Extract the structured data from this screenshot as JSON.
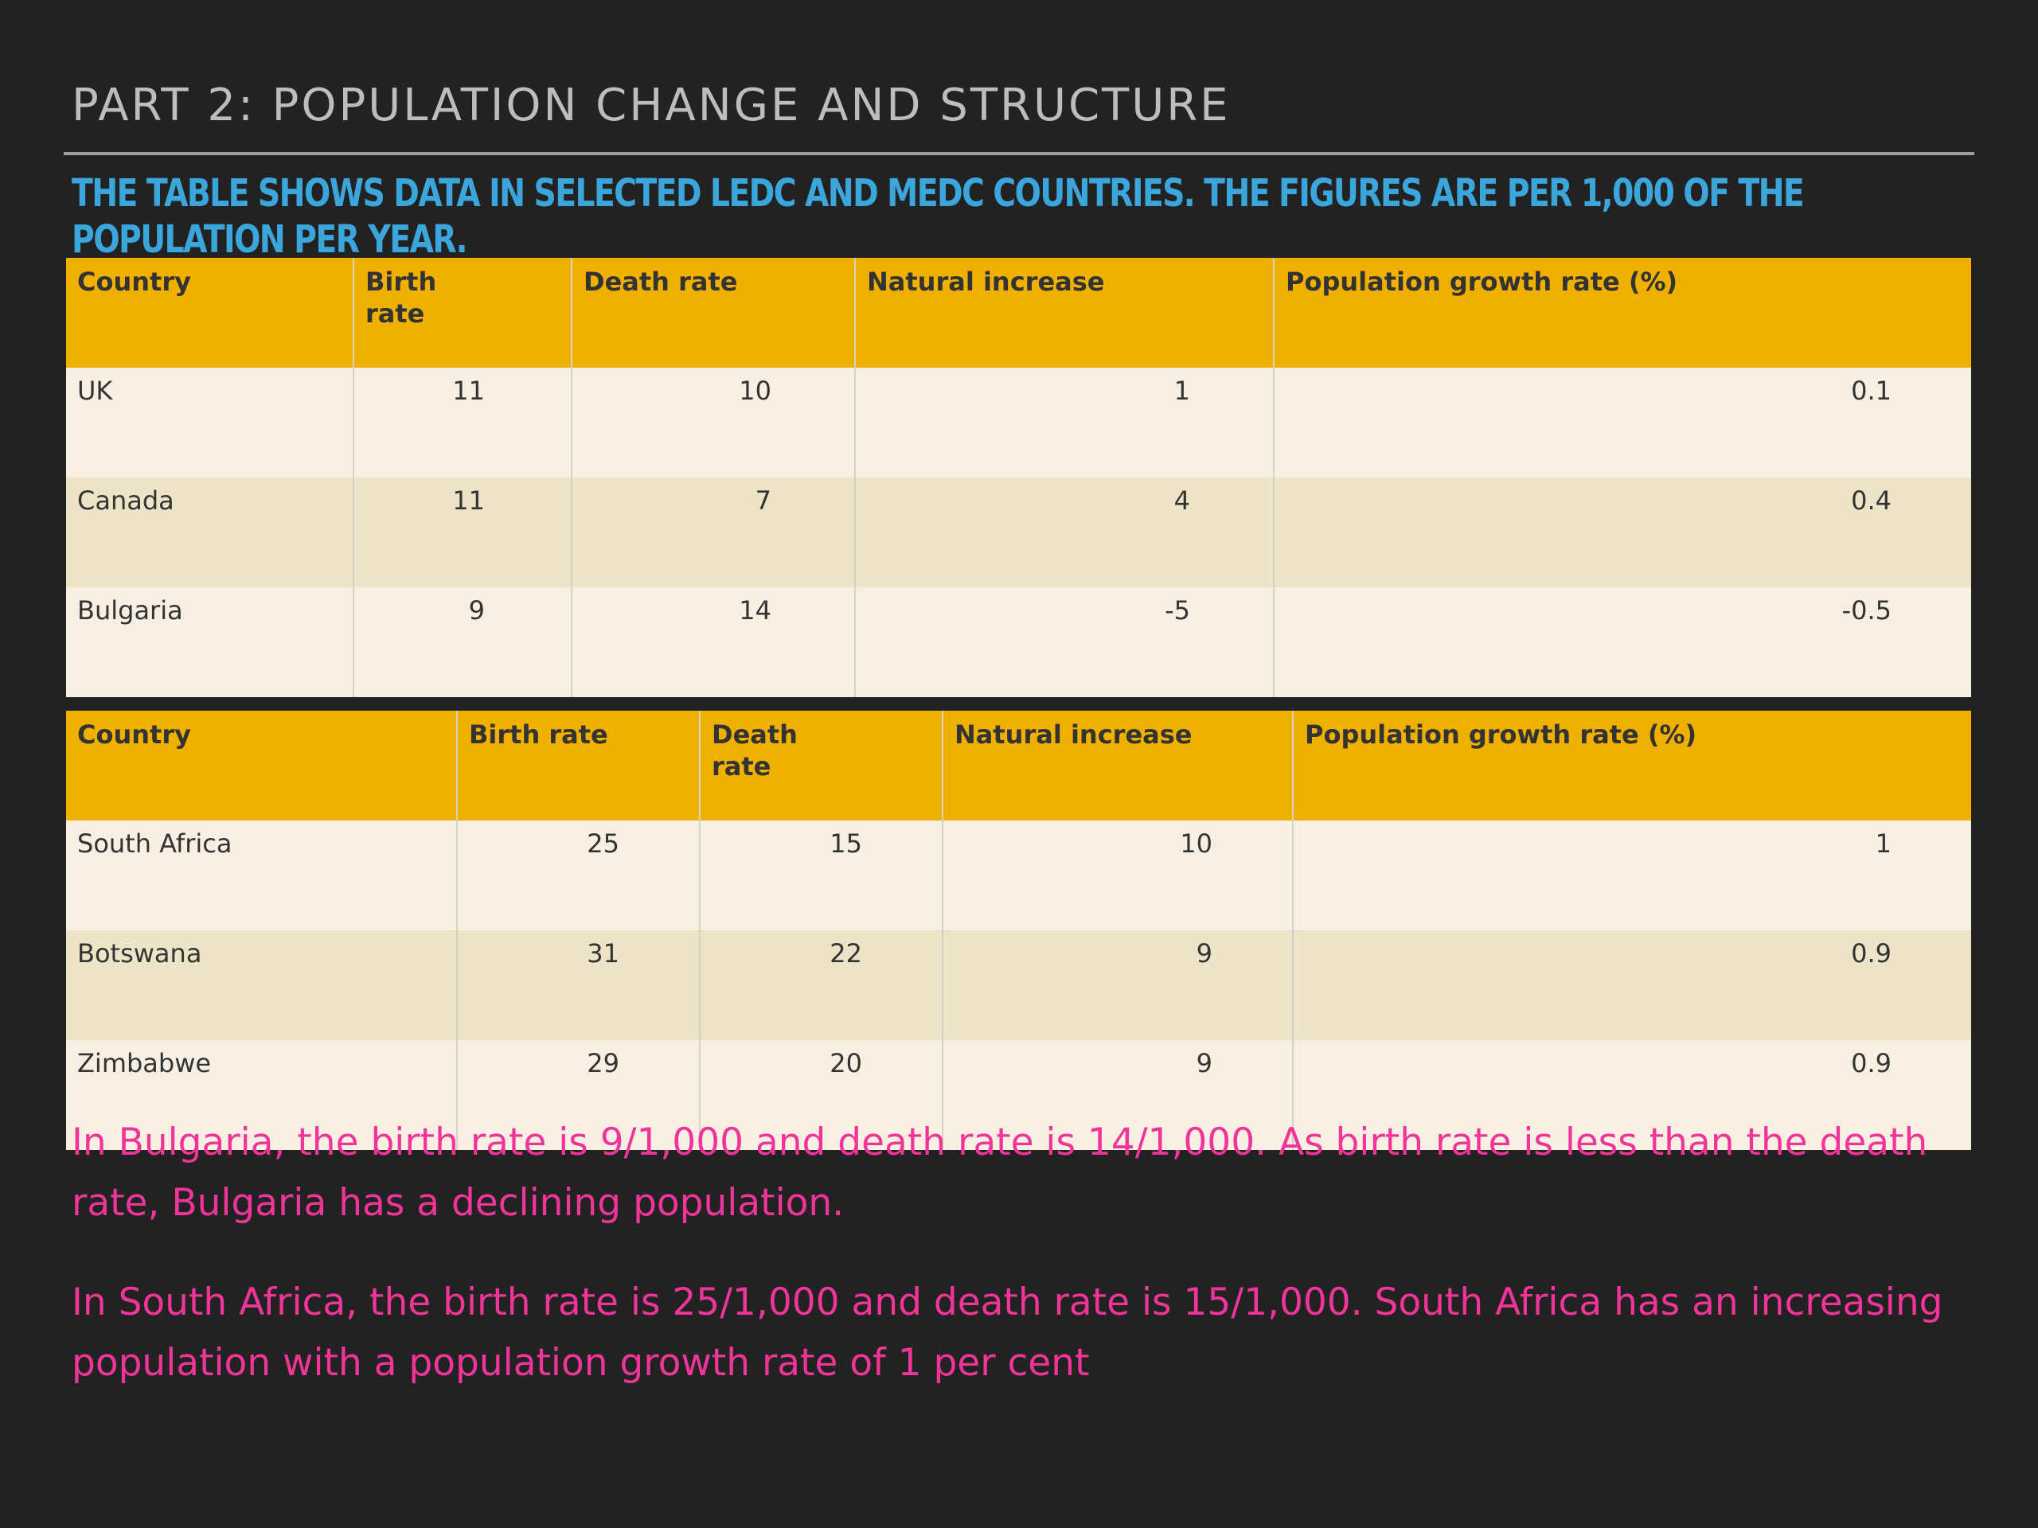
{
  "title": "PART 2: POPULATION CHANGE AND STRUCTURE",
  "subtitle": "THE TABLE SHOWS DATA IN SELECTED LEDC AND MEDC COUNTRIES. THE FIGURES ARE PER 1,000 OF THE POPULATION PER YEAR.",
  "medc_table": {
    "headers": [
      "Country",
      "Birth rate",
      "Death rate",
      "Natural increase",
      "Population growth rate (%)"
    ],
    "rows": [
      [
        "UK",
        "11",
        "10",
        "1",
        "0.1"
      ],
      [
        "Canada",
        "11",
        "7",
        "4",
        "0.4"
      ],
      [
        "Bulgaria",
        "9",
        "14",
        "-5",
        "-0.5"
      ]
    ]
  },
  "ledc_table": {
    "headers": [
      "Country",
      "Birth rate",
      "Death rate",
      "Natural increase",
      "Population growth rate (%)"
    ],
    "rows": [
      [
        "South Africa",
        "25",
        "15",
        "10",
        "1"
      ],
      [
        "Botswana",
        "31",
        "22",
        "9",
        "0.9"
      ],
      [
        "Zimbabwe",
        "29",
        "20",
        "9",
        "0.9"
      ]
    ]
  },
  "paragraphs": [
    "In Bulgaria, the birth rate is 9/1,000 and death rate is 14/1,000. As birth rate is less than the death rate, Bulgaria has a declining population.",
    "In South Africa, the birth rate is 25/1,000 and death rate is 15/1,000. South Africa has an increasing population with a population growth rate of 1 per cent"
  ],
  "colors": {
    "background": "#222222",
    "title": "#bdbdbd",
    "subtitle": "#3aa6dc",
    "header": "#efb000",
    "row_light": "#f8efe3",
    "row_dark": "#ede3c6",
    "annotation": "#f0349a"
  }
}
